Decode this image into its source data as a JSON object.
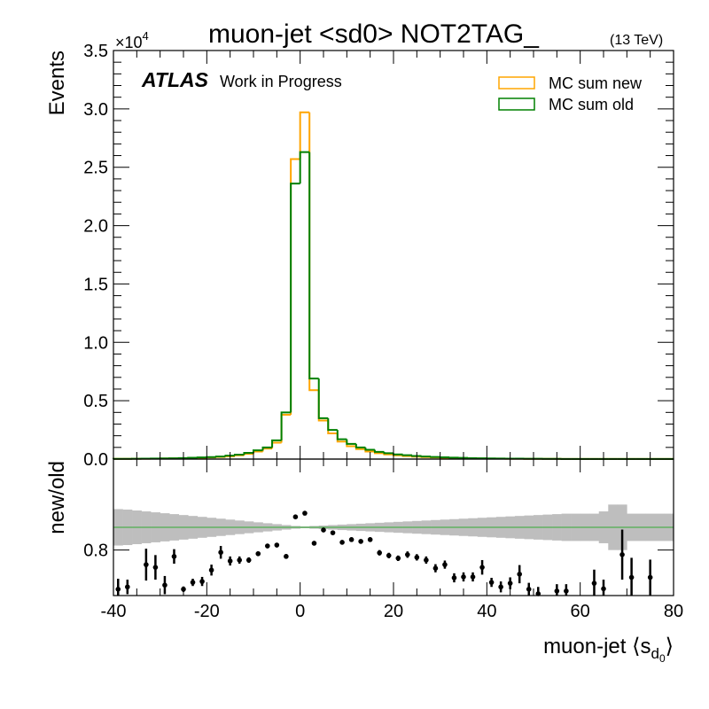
{
  "chart_data": {
    "type": "histogram",
    "title": "muon-jet <sd0> NOT2TAG_",
    "energy": "(13 TeV)",
    "experiment": "ATLAS",
    "status": "Work in Progress",
    "ylabel": "Events",
    "ymult_base": "×10",
    "ymult_exp": "4",
    "xlabel_main": "muon-jet ⟨s",
    "xlabel_sub": "d",
    "xlabel_subsub": "0",
    "xlabel_end": "⟩",
    "xlim": [
      -40,
      80
    ],
    "xticks": [
      -40,
      -20,
      0,
      20,
      40,
      60,
      80
    ],
    "ylim": [
      0,
      3.5
    ],
    "yticks": [
      {
        "value": 0,
        "label": "0.0"
      },
      0.5,
      {
        "value": 1,
        "label": "1.0"
      },
      1.5,
      {
        "value": 2,
        "label": "2.0"
      },
      2.5,
      {
        "value": 3,
        "label": "3.0"
      },
      3.5
    ],
    "bins": [
      -40,
      -38,
      -36,
      -34,
      -32,
      -30,
      -28,
      -26,
      -24,
      -22,
      -20,
      -18,
      -16,
      -14,
      -12,
      -10,
      -8,
      -6,
      -4,
      -2,
      0,
      2,
      4,
      6,
      8,
      10,
      12,
      14,
      16,
      18,
      20,
      22,
      24,
      26,
      28,
      30,
      32,
      34,
      36,
      38,
      40,
      42,
      44,
      46,
      48,
      50,
      52,
      54,
      56,
      58,
      60,
      62,
      64,
      66,
      68,
      70,
      72,
      74,
      76,
      78,
      80
    ],
    "series": [
      {
        "name": "MC sum new",
        "color": "#ffa500",
        "values": [
          0.002,
          0.002,
          0.003,
          0.003,
          0.004,
          0.005,
          0.006,
          0.007,
          0.009,
          0.011,
          0.014,
          0.018,
          0.024,
          0.032,
          0.045,
          0.065,
          0.09,
          0.14,
          0.38,
          2.57,
          2.97,
          0.59,
          0.33,
          0.22,
          0.15,
          0.11,
          0.085,
          0.065,
          0.05,
          0.04,
          0.032,
          0.026,
          0.021,
          0.017,
          0.014,
          0.011,
          0.009,
          0.007,
          0.006,
          0.005,
          0.004,
          0.004,
          0.003,
          0.003,
          0.002,
          0.002,
          0.002,
          0.002,
          0.001,
          0.001,
          0.001,
          0.001,
          0.001,
          0.001,
          0.001,
          0.001,
          0.001,
          0.001,
          0.001,
          0.001
        ]
      },
      {
        "name": "MC sum old",
        "color": "#008000",
        "values": [
          0.002,
          0.002,
          0.003,
          0.004,
          0.005,
          0.006,
          0.007,
          0.009,
          0.011,
          0.014,
          0.017,
          0.022,
          0.029,
          0.038,
          0.053,
          0.075,
          0.1,
          0.16,
          0.4,
          2.36,
          2.63,
          0.69,
          0.35,
          0.25,
          0.17,
          0.13,
          0.1,
          0.08,
          0.062,
          0.05,
          0.04,
          0.033,
          0.027,
          0.022,
          0.018,
          0.015,
          0.012,
          0.01,
          0.008,
          0.007,
          0.006,
          0.005,
          0.004,
          0.004,
          0.003,
          0.003,
          0.002,
          0.002,
          0.001,
          0.001,
          0.001,
          0.001,
          0.001,
          0.001,
          0.001,
          0.001,
          0.001,
          0.001,
          0.001,
          0.001
        ]
      }
    ],
    "ratio": {
      "ylabel": "new/old",
      "ylim": [
        0.7,
        1.0
      ],
      "yticks": [
        0.8
      ],
      "ref_line": 0.85,
      "ref_color": "#33aa33",
      "band_color": "#bebebe",
      "point_color": "#000000",
      "band": [
        0.04,
        0.039,
        0.037,
        0.035,
        0.033,
        0.031,
        0.029,
        0.027,
        0.025,
        0.023,
        0.021,
        0.019,
        0.017,
        0.015,
        0.013,
        0.011,
        0.009,
        0.007,
        0.005,
        0.003,
        0.002,
        0.003,
        0.004,
        0.005,
        0.006,
        0.007,
        0.008,
        0.009,
        0.01,
        0.011,
        0.012,
        0.013,
        0.014,
        0.015,
        0.016,
        0.017,
        0.018,
        0.019,
        0.02,
        0.021,
        0.022,
        0.023,
        0.024,
        0.025,
        0.026,
        0.027,
        0.028,
        0.029,
        0.03,
        0.03,
        0.03,
        0.03,
        0.035,
        0.05,
        0.05,
        0.03,
        0.03,
        0.03,
        0.03,
        0.03
      ],
      "x": [
        -39,
        -37,
        -33,
        -31,
        -29,
        -27,
        -25,
        -23,
        -21,
        -19,
        -17,
        -15,
        -13,
        -11,
        -9,
        -7,
        -5,
        -3,
        -1,
        1,
        3,
        5,
        7,
        9,
        11,
        13,
        15,
        17,
        19,
        21,
        23,
        25,
        27,
        29,
        31,
        33,
        35,
        37,
        39,
        41,
        43,
        45,
        47,
        49,
        51,
        55,
        57,
        63,
        65,
        69,
        71,
        75
      ],
      "values": [
        0.714,
        0.719,
        0.768,
        0.762,
        0.723,
        0.786,
        0.714,
        0.729,
        0.731,
        0.756,
        0.795,
        0.776,
        0.778,
        0.778,
        0.792,
        0.809,
        0.811,
        0.786,
        0.873,
        0.881,
        0.815,
        0.844,
        0.838,
        0.817,
        0.823,
        0.819,
        0.823,
        0.794,
        0.788,
        0.782,
        0.79,
        0.784,
        0.778,
        0.76,
        0.768,
        0.739,
        0.741,
        0.741,
        0.762,
        0.729,
        0.719,
        0.727,
        0.747,
        0.714,
        0.704,
        0.71,
        0.71,
        0.727,
        0.715,
        0.79,
        0.74,
        0.74
      ],
      "errors": [
        0.023,
        0.016,
        0.035,
        0.027,
        0.02,
        0.016,
        0.006,
        0.008,
        0.01,
        0.012,
        0.014,
        0.01,
        0.008,
        0.006,
        0.005,
        0.005,
        0.005,
        0.005,
        0.004,
        0.004,
        0.004,
        0.004,
        0.004,
        0.005,
        0.005,
        0.005,
        0.005,
        0.006,
        0.006,
        0.006,
        0.007,
        0.007,
        0.008,
        0.009,
        0.009,
        0.01,
        0.01,
        0.01,
        0.016,
        0.01,
        0.012,
        0.013,
        0.02,
        0.014,
        0.015,
        0.015,
        0.015,
        0.03,
        0.02,
        0.055,
        0.043,
        0.039
      ]
    }
  }
}
